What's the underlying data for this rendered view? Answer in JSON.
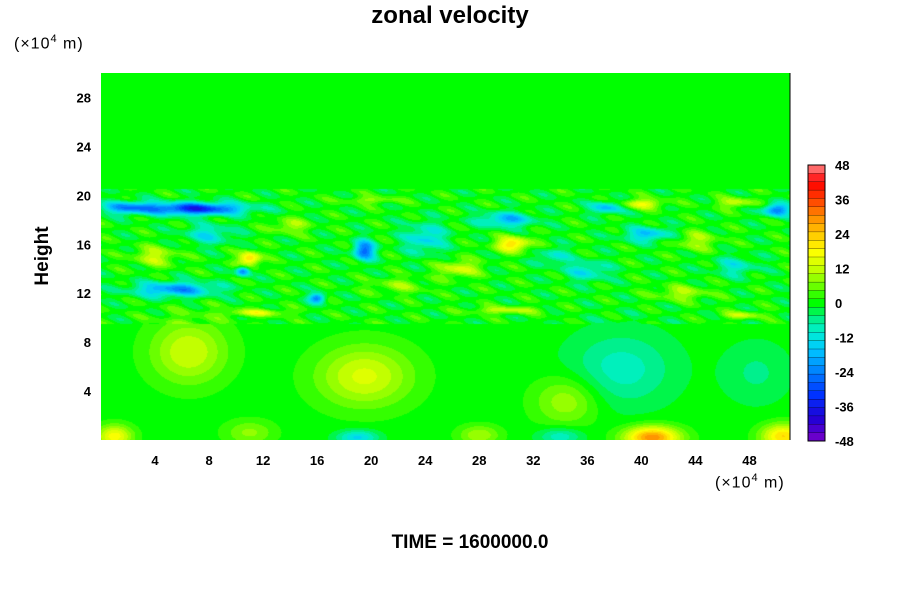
{
  "title": "zonal velocity",
  "y_unit": {
    "base": "(×10",
    "exp": "4",
    "rest": " m)"
  },
  "x_unit": {
    "base": "(×10",
    "exp": "4",
    "rest": " m)"
  },
  "time_label": "TIME = 1600000.0",
  "chart_data": {
    "type": "heatmap",
    "title": "zonal velocity",
    "ylabel": "Height",
    "xlabel": "",
    "x_ticks": [
      4,
      8,
      12,
      16,
      20,
      24,
      28,
      32,
      36,
      40,
      44,
      48
    ],
    "y_ticks": [
      4,
      8,
      12,
      16,
      20,
      24,
      28
    ],
    "xlim": [
      0,
      51
    ],
    "ylim": [
      0,
      30
    ],
    "colorbar": {
      "ticks": [
        48,
        36,
        24,
        12,
        0,
        -12,
        -24,
        -36,
        -48
      ],
      "range": [
        -48,
        48
      ],
      "levels": 33
    },
    "colorscale": [
      [
        -48,
        "#7a00c8"
      ],
      [
        -40,
        "#1e00d6"
      ],
      [
        -32,
        "#0032ff"
      ],
      [
        -24,
        "#0080ff"
      ],
      [
        -16,
        "#00c8ff"
      ],
      [
        -10,
        "#00f0d0"
      ],
      [
        -5,
        "#00f080"
      ],
      [
        0,
        "#00ff00"
      ],
      [
        6,
        "#6cff00"
      ],
      [
        12,
        "#c8ff00"
      ],
      [
        18,
        "#ffff00"
      ],
      [
        24,
        "#ffc800"
      ],
      [
        30,
        "#ff8c00"
      ],
      [
        36,
        "#ff4000"
      ],
      [
        42,
        "#ff0000"
      ],
      [
        48,
        "#ff8a8a"
      ]
    ],
    "features": [
      {
        "x": 6.5,
        "y": 7.2,
        "value": 13,
        "sx": 2.8,
        "sy": 2.6
      },
      {
        "x": 19.5,
        "y": 5.2,
        "value": 14,
        "sx": 3.5,
        "sy": 2.5
      },
      {
        "x": 34.5,
        "y": 3.2,
        "value": 10,
        "sx": 2.4,
        "sy": 2.0
      },
      {
        "x": 38.5,
        "y": 5.8,
        "value": -9,
        "sx": 3.8,
        "sy": 3.0
      },
      {
        "x": 48.5,
        "y": 5.5,
        "value": -5,
        "sx": 2.5,
        "sy": 2.5
      },
      {
        "x": 40.8,
        "y": 0.2,
        "value": 30,
        "sx": 2.0,
        "sy": 0.9
      },
      {
        "x": 50.5,
        "y": 0.3,
        "value": 22,
        "sx": 1.6,
        "sy": 1.0
      },
      {
        "x": 1.0,
        "y": 0.3,
        "value": 18,
        "sx": 1.3,
        "sy": 0.9
      },
      {
        "x": 19.0,
        "y": 0.2,
        "value": -14,
        "sx": 1.5,
        "sy": 0.6
      },
      {
        "x": 34.0,
        "y": 0.3,
        "value": -10,
        "sx": 1.6,
        "sy": 0.7
      },
      {
        "x": 11.0,
        "y": 0.6,
        "value": 8,
        "sx": 1.8,
        "sy": 1.0
      },
      {
        "x": 28.0,
        "y": 0.4,
        "value": 10,
        "sx": 1.5,
        "sy": 0.8
      },
      {
        "x": 7.0,
        "y": 18.9,
        "value": -34,
        "sx": 3.6,
        "sy": 0.5
      },
      {
        "x": 2.0,
        "y": 19.0,
        "value": -20,
        "sx": 2.0,
        "sy": 0.5
      },
      {
        "x": 50.0,
        "y": 18.8,
        "value": -25,
        "sx": 1.0,
        "sy": 0.5
      },
      {
        "x": 37.5,
        "y": 19.0,
        "value": -18,
        "sx": 1.2,
        "sy": 0.5
      },
      {
        "x": 40.0,
        "y": 19.3,
        "value": 16,
        "sx": 1.6,
        "sy": 0.4
      },
      {
        "x": 47.0,
        "y": 19.4,
        "value": 12,
        "sx": 1.4,
        "sy": 0.4
      },
      {
        "x": 20.0,
        "y": 19.6,
        "value": 8,
        "sx": 2.0,
        "sy": 0.3
      },
      {
        "x": 19.5,
        "y": 15.5,
        "value": -26,
        "sx": 0.8,
        "sy": 0.8
      },
      {
        "x": 11.0,
        "y": 14.8,
        "value": 24,
        "sx": 0.8,
        "sy": 0.6
      },
      {
        "x": 10.5,
        "y": 13.8,
        "value": -24,
        "sx": 0.5,
        "sy": 0.4
      },
      {
        "x": 30.5,
        "y": 16.0,
        "value": 22,
        "sx": 1.3,
        "sy": 0.6
      },
      {
        "x": 5.5,
        "y": 12.3,
        "value": -22,
        "sx": 3.0,
        "sy": 0.6
      },
      {
        "x": 16.0,
        "y": 11.6,
        "value": -24,
        "sx": 0.6,
        "sy": 0.4
      },
      {
        "x": 30.0,
        "y": 18.0,
        "value": -18,
        "sx": 2.0,
        "sy": 0.6
      },
      {
        "x": 40.5,
        "y": 16.8,
        "value": -16,
        "sx": 1.8,
        "sy": 0.6
      },
      {
        "x": 24.0,
        "y": 16.5,
        "value": -14,
        "sx": 1.5,
        "sy": 1.2
      },
      {
        "x": 44.0,
        "y": 16.3,
        "value": 10,
        "sx": 1.6,
        "sy": 0.8
      },
      {
        "x": 36.0,
        "y": 13.8,
        "value": -12,
        "sx": 1.6,
        "sy": 0.8
      },
      {
        "x": 8.0,
        "y": 16.8,
        "value": -12,
        "sx": 1.8,
        "sy": 0.8
      },
      {
        "x": 4.0,
        "y": 15.0,
        "value": 12,
        "sx": 1.6,
        "sy": 0.8
      },
      {
        "x": 26.5,
        "y": 14.0,
        "value": 14,
        "sx": 1.5,
        "sy": 0.7
      },
      {
        "x": 47.0,
        "y": 14.2,
        "value": -10,
        "sx": 1.6,
        "sy": 0.8
      },
      {
        "x": 14.0,
        "y": 17.5,
        "value": 10,
        "sx": 1.4,
        "sy": 0.6
      },
      {
        "x": 33.5,
        "y": 15.0,
        "value": -10,
        "sx": 1.2,
        "sy": 0.7
      },
      {
        "x": 22.0,
        "y": 12.6,
        "value": 8,
        "sx": 2.0,
        "sy": 0.6
      },
      {
        "x": 43.0,
        "y": 12.0,
        "value": 10,
        "sx": 2.0,
        "sy": 0.6
      },
      {
        "x": 11.5,
        "y": 10.4,
        "value": 14,
        "sx": 2.2,
        "sy": 0.3
      },
      {
        "x": 30.0,
        "y": 10.6,
        "value": 12,
        "sx": 2.5,
        "sy": 0.3
      },
      {
        "x": 47.5,
        "y": 10.2,
        "value": 12,
        "sx": 1.5,
        "sy": 0.3
      }
    ]
  }
}
